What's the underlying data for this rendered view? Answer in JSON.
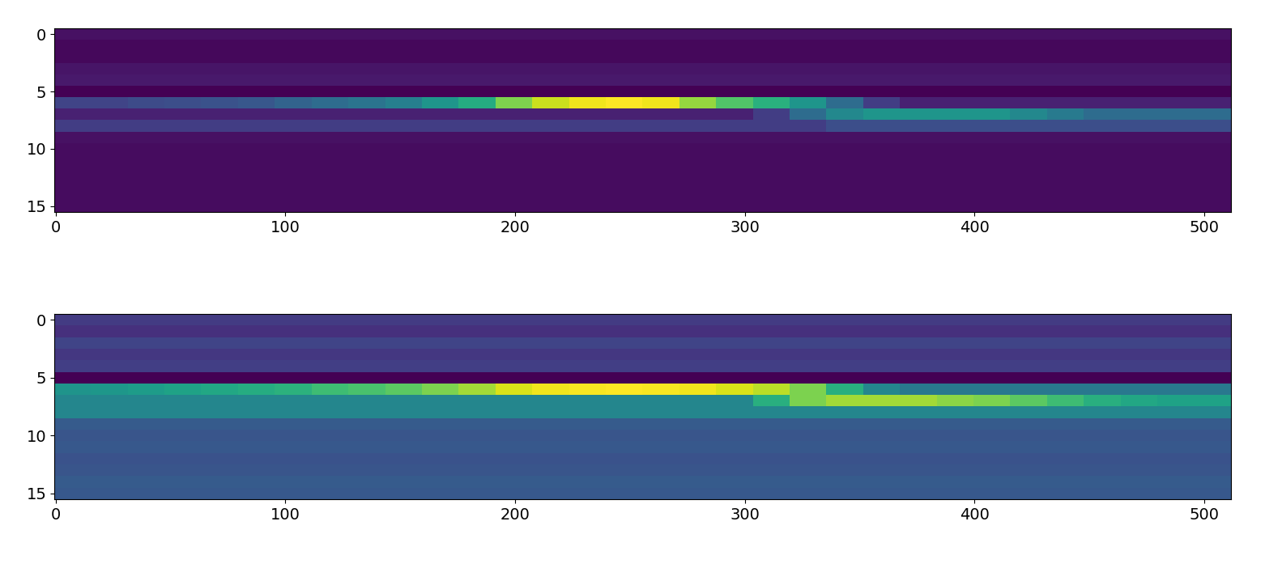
{
  "chart_data": [
    {
      "type": "heatmap",
      "color": "viridis",
      "xlim": [
        -0.5,
        511.5
      ],
      "ylim": [
        15.5,
        -0.5
      ],
      "xticks": [
        0,
        100,
        200,
        300,
        400,
        500
      ],
      "yticks": [
        0,
        5,
        10,
        15
      ],
      "cells": [
        [
          0.08,
          0.08,
          0.08,
          0.08,
          0.08,
          0.08,
          0.08,
          0.08,
          0.08,
          0.08,
          0.08,
          0.08,
          0.08,
          0.08,
          0.08,
          0.08,
          0.08,
          0.08,
          0.08,
          0.08,
          0.08,
          0.08,
          0.08,
          0.08,
          0.08,
          0.08,
          0.08,
          0.08,
          0.08,
          0.08,
          0.08,
          0.08
        ],
        [
          0.06,
          0.06,
          0.06,
          0.06,
          0.06,
          0.06,
          0.06,
          0.06,
          0.06,
          0.06,
          0.06,
          0.06,
          0.06,
          0.06,
          0.06,
          0.06,
          0.06,
          0.06,
          0.06,
          0.06,
          0.06,
          0.06,
          0.06,
          0.06,
          0.06,
          0.06,
          0.06,
          0.06,
          0.06,
          0.06,
          0.06,
          0.06
        ],
        [
          0.06,
          0.06,
          0.06,
          0.06,
          0.06,
          0.06,
          0.06,
          0.06,
          0.06,
          0.06,
          0.06,
          0.06,
          0.06,
          0.06,
          0.06,
          0.06,
          0.06,
          0.06,
          0.06,
          0.06,
          0.06,
          0.06,
          0.06,
          0.06,
          0.06,
          0.06,
          0.06,
          0.06,
          0.06,
          0.06,
          0.06,
          0.06
        ],
        [
          0.09,
          0.09,
          0.09,
          0.09,
          0.09,
          0.09,
          0.09,
          0.09,
          0.09,
          0.09,
          0.09,
          0.09,
          0.09,
          0.09,
          0.09,
          0.09,
          0.09,
          0.09,
          0.09,
          0.09,
          0.09,
          0.09,
          0.09,
          0.09,
          0.09,
          0.09,
          0.09,
          0.09,
          0.09,
          0.09,
          0.09,
          0.09
        ],
        [
          0.1,
          0.1,
          0.1,
          0.1,
          0.1,
          0.1,
          0.1,
          0.1,
          0.1,
          0.1,
          0.1,
          0.1,
          0.1,
          0.1,
          0.1,
          0.1,
          0.1,
          0.1,
          0.1,
          0.1,
          0.1,
          0.1,
          0.1,
          0.1,
          0.1,
          0.1,
          0.1,
          0.1,
          0.1,
          0.1,
          0.1,
          0.1
        ],
        [
          0.04,
          0.04,
          0.04,
          0.04,
          0.04,
          0.04,
          0.04,
          0.04,
          0.04,
          0.04,
          0.04,
          0.04,
          0.04,
          0.04,
          0.04,
          0.04,
          0.04,
          0.04,
          0.04,
          0.04,
          0.04,
          0.04,
          0.04,
          0.04,
          0.04,
          0.04,
          0.04,
          0.04,
          0.04,
          0.04,
          0.04,
          0.04
        ],
        [
          0.22,
          0.22,
          0.24,
          0.25,
          0.26,
          0.28,
          0.32,
          0.35,
          0.38,
          0.42,
          0.5,
          0.58,
          0.75,
          0.85,
          0.9,
          0.92,
          0.9,
          0.78,
          0.68,
          0.6,
          0.5,
          0.35,
          0.2,
          0.12,
          0.12,
          0.12,
          0.12,
          0.12,
          0.12,
          0.12,
          0.12,
          0.12
        ],
        [
          0.12,
          0.12,
          0.12,
          0.12,
          0.12,
          0.12,
          0.12,
          0.12,
          0.12,
          0.12,
          0.12,
          0.12,
          0.12,
          0.12,
          0.12,
          0.12,
          0.12,
          0.12,
          0.12,
          0.2,
          0.35,
          0.45,
          0.5,
          0.5,
          0.5,
          0.5,
          0.45,
          0.4,
          0.35,
          0.35,
          0.35,
          0.35
        ],
        [
          0.2,
          0.2,
          0.2,
          0.2,
          0.2,
          0.2,
          0.2,
          0.2,
          0.2,
          0.2,
          0.2,
          0.2,
          0.2,
          0.2,
          0.2,
          0.2,
          0.2,
          0.2,
          0.2,
          0.2,
          0.2,
          0.25,
          0.25,
          0.25,
          0.25,
          0.25,
          0.25,
          0.25,
          0.25,
          0.25,
          0.25,
          0.25
        ],
        [
          0.08,
          0.08,
          0.08,
          0.08,
          0.08,
          0.08,
          0.08,
          0.08,
          0.08,
          0.08,
          0.08,
          0.08,
          0.08,
          0.08,
          0.08,
          0.08,
          0.08,
          0.08,
          0.08,
          0.08,
          0.08,
          0.08,
          0.08,
          0.08,
          0.08,
          0.08,
          0.08,
          0.08,
          0.08,
          0.08,
          0.08,
          0.08
        ],
        [
          0.07,
          0.07,
          0.07,
          0.07,
          0.07,
          0.07,
          0.07,
          0.07,
          0.07,
          0.07,
          0.07,
          0.07,
          0.07,
          0.07,
          0.07,
          0.07,
          0.07,
          0.07,
          0.07,
          0.07,
          0.07,
          0.07,
          0.07,
          0.07,
          0.07,
          0.07,
          0.07,
          0.07,
          0.07,
          0.07,
          0.07,
          0.07
        ],
        [
          0.07,
          0.07,
          0.07,
          0.07,
          0.07,
          0.07,
          0.07,
          0.07,
          0.07,
          0.07,
          0.07,
          0.07,
          0.07,
          0.07,
          0.07,
          0.07,
          0.07,
          0.07,
          0.07,
          0.07,
          0.07,
          0.07,
          0.07,
          0.07,
          0.07,
          0.07,
          0.07,
          0.07,
          0.07,
          0.07,
          0.07,
          0.07
        ],
        [
          0.07,
          0.07,
          0.07,
          0.07,
          0.07,
          0.07,
          0.07,
          0.07,
          0.07,
          0.07,
          0.07,
          0.07,
          0.07,
          0.07,
          0.07,
          0.07,
          0.07,
          0.07,
          0.07,
          0.07,
          0.07,
          0.07,
          0.07,
          0.07,
          0.07,
          0.07,
          0.07,
          0.07,
          0.07,
          0.07,
          0.07,
          0.07
        ],
        [
          0.07,
          0.07,
          0.07,
          0.07,
          0.07,
          0.07,
          0.07,
          0.07,
          0.07,
          0.07,
          0.07,
          0.07,
          0.07,
          0.07,
          0.07,
          0.07,
          0.07,
          0.07,
          0.07,
          0.07,
          0.07,
          0.07,
          0.07,
          0.07,
          0.07,
          0.07,
          0.07,
          0.07,
          0.07,
          0.07,
          0.07,
          0.07
        ],
        [
          0.07,
          0.07,
          0.07,
          0.07,
          0.07,
          0.07,
          0.07,
          0.07,
          0.07,
          0.07,
          0.07,
          0.07,
          0.07,
          0.07,
          0.07,
          0.07,
          0.07,
          0.07,
          0.07,
          0.07,
          0.07,
          0.07,
          0.07,
          0.07,
          0.07,
          0.07,
          0.07,
          0.07,
          0.07,
          0.07,
          0.07,
          0.07
        ],
        [
          0.07,
          0.07,
          0.07,
          0.07,
          0.07,
          0.07,
          0.07,
          0.07,
          0.07,
          0.07,
          0.07,
          0.07,
          0.07,
          0.07,
          0.07,
          0.07,
          0.07,
          0.07,
          0.07,
          0.07,
          0.07,
          0.07,
          0.07,
          0.07,
          0.07,
          0.07,
          0.07,
          0.07,
          0.07,
          0.07,
          0.07,
          0.07
        ]
      ]
    },
    {
      "type": "heatmap",
      "color": "viridis",
      "xlim": [
        -0.5,
        511.5
      ],
      "ylim": [
        15.5,
        -0.5
      ],
      "xticks": [
        0,
        100,
        200,
        300,
        400,
        500
      ],
      "yticks": [
        0,
        5,
        10,
        15
      ],
      "cells": [
        [
          0.25,
          0.25,
          0.25,
          0.25,
          0.25,
          0.25,
          0.25,
          0.25,
          0.25,
          0.25,
          0.25,
          0.25,
          0.25,
          0.25,
          0.25,
          0.25,
          0.25,
          0.25,
          0.25,
          0.25,
          0.25,
          0.25,
          0.25,
          0.25,
          0.25,
          0.25,
          0.25,
          0.25,
          0.25,
          0.25,
          0.25,
          0.25
        ],
        [
          0.22,
          0.22,
          0.22,
          0.22,
          0.22,
          0.22,
          0.22,
          0.22,
          0.22,
          0.22,
          0.22,
          0.22,
          0.22,
          0.22,
          0.22,
          0.22,
          0.22,
          0.22,
          0.22,
          0.22,
          0.22,
          0.22,
          0.22,
          0.22,
          0.22,
          0.22,
          0.22,
          0.22,
          0.22,
          0.22,
          0.22,
          0.22
        ],
        [
          0.28,
          0.28,
          0.28,
          0.28,
          0.28,
          0.28,
          0.28,
          0.28,
          0.28,
          0.28,
          0.28,
          0.28,
          0.28,
          0.28,
          0.28,
          0.28,
          0.28,
          0.28,
          0.28,
          0.28,
          0.28,
          0.28,
          0.28,
          0.28,
          0.28,
          0.28,
          0.28,
          0.28,
          0.28,
          0.28,
          0.28,
          0.28
        ],
        [
          0.24,
          0.24,
          0.24,
          0.24,
          0.24,
          0.24,
          0.24,
          0.24,
          0.24,
          0.24,
          0.24,
          0.24,
          0.24,
          0.24,
          0.24,
          0.24,
          0.24,
          0.24,
          0.24,
          0.24,
          0.24,
          0.24,
          0.24,
          0.24,
          0.24,
          0.24,
          0.24,
          0.24,
          0.24,
          0.24,
          0.24,
          0.24
        ],
        [
          0.26,
          0.26,
          0.26,
          0.26,
          0.26,
          0.26,
          0.26,
          0.26,
          0.26,
          0.26,
          0.26,
          0.26,
          0.26,
          0.26,
          0.26,
          0.26,
          0.26,
          0.26,
          0.26,
          0.26,
          0.26,
          0.26,
          0.26,
          0.26,
          0.26,
          0.26,
          0.26,
          0.26,
          0.26,
          0.26,
          0.26,
          0.26
        ],
        [
          0.1,
          0.1,
          0.1,
          0.1,
          0.1,
          0.1,
          0.1,
          0.1,
          0.1,
          0.1,
          0.1,
          0.1,
          0.1,
          0.1,
          0.1,
          0.1,
          0.1,
          0.1,
          0.1,
          0.1,
          0.1,
          0.1,
          0.1,
          0.1,
          0.1,
          0.1,
          0.1,
          0.1,
          0.1,
          0.1,
          0.1,
          0.1
        ],
        [
          0.55,
          0.56,
          0.58,
          0.6,
          0.62,
          0.64,
          0.66,
          0.7,
          0.72,
          0.75,
          0.8,
          0.85,
          0.92,
          0.95,
          0.96,
          0.97,
          0.96,
          0.95,
          0.92,
          0.88,
          0.8,
          0.65,
          0.5,
          0.45,
          0.45,
          0.45,
          0.45,
          0.45,
          0.45,
          0.45,
          0.45,
          0.45
        ],
        [
          0.5,
          0.5,
          0.5,
          0.5,
          0.5,
          0.5,
          0.5,
          0.5,
          0.5,
          0.5,
          0.5,
          0.5,
          0.5,
          0.5,
          0.5,
          0.5,
          0.5,
          0.5,
          0.5,
          0.65,
          0.8,
          0.85,
          0.85,
          0.85,
          0.82,
          0.8,
          0.75,
          0.7,
          0.65,
          0.62,
          0.6,
          0.6
        ],
        [
          0.5,
          0.5,
          0.5,
          0.5,
          0.5,
          0.5,
          0.5,
          0.5,
          0.5,
          0.5,
          0.5,
          0.5,
          0.5,
          0.5,
          0.5,
          0.5,
          0.5,
          0.5,
          0.5,
          0.5,
          0.5,
          0.5,
          0.5,
          0.5,
          0.5,
          0.5,
          0.5,
          0.5,
          0.5,
          0.5,
          0.5,
          0.5
        ],
        [
          0.35,
          0.35,
          0.35,
          0.35,
          0.35,
          0.35,
          0.35,
          0.35,
          0.35,
          0.35,
          0.35,
          0.35,
          0.35,
          0.35,
          0.35,
          0.35,
          0.35,
          0.35,
          0.35,
          0.35,
          0.35,
          0.35,
          0.35,
          0.35,
          0.35,
          0.35,
          0.35,
          0.35,
          0.35,
          0.35,
          0.35,
          0.35
        ],
        [
          0.33,
          0.33,
          0.33,
          0.33,
          0.33,
          0.33,
          0.33,
          0.33,
          0.33,
          0.33,
          0.33,
          0.33,
          0.33,
          0.33,
          0.33,
          0.33,
          0.33,
          0.33,
          0.33,
          0.33,
          0.33,
          0.33,
          0.33,
          0.33,
          0.33,
          0.33,
          0.33,
          0.33,
          0.33,
          0.33,
          0.33,
          0.33
        ],
        [
          0.34,
          0.34,
          0.34,
          0.34,
          0.34,
          0.34,
          0.34,
          0.34,
          0.34,
          0.34,
          0.34,
          0.34,
          0.34,
          0.34,
          0.34,
          0.34,
          0.34,
          0.34,
          0.34,
          0.34,
          0.34,
          0.34,
          0.34,
          0.34,
          0.34,
          0.34,
          0.34,
          0.34,
          0.34,
          0.34,
          0.34,
          0.34
        ],
        [
          0.32,
          0.32,
          0.32,
          0.32,
          0.32,
          0.32,
          0.32,
          0.32,
          0.32,
          0.32,
          0.32,
          0.32,
          0.32,
          0.32,
          0.32,
          0.32,
          0.32,
          0.32,
          0.32,
          0.32,
          0.32,
          0.32,
          0.32,
          0.32,
          0.32,
          0.32,
          0.32,
          0.32,
          0.32,
          0.32,
          0.32,
          0.32
        ],
        [
          0.33,
          0.33,
          0.33,
          0.33,
          0.33,
          0.33,
          0.33,
          0.33,
          0.33,
          0.33,
          0.33,
          0.33,
          0.33,
          0.33,
          0.33,
          0.33,
          0.33,
          0.33,
          0.33,
          0.33,
          0.33,
          0.33,
          0.33,
          0.33,
          0.33,
          0.33,
          0.33,
          0.33,
          0.33,
          0.33,
          0.33,
          0.33
        ],
        [
          0.35,
          0.35,
          0.35,
          0.35,
          0.35,
          0.35,
          0.35,
          0.35,
          0.35,
          0.35,
          0.35,
          0.35,
          0.35,
          0.35,
          0.35,
          0.35,
          0.35,
          0.35,
          0.35,
          0.35,
          0.35,
          0.35,
          0.35,
          0.35,
          0.35,
          0.35,
          0.35,
          0.35,
          0.35,
          0.35,
          0.35,
          0.35
        ],
        [
          0.34,
          0.34,
          0.34,
          0.34,
          0.34,
          0.34,
          0.34,
          0.34,
          0.34,
          0.34,
          0.34,
          0.34,
          0.34,
          0.34,
          0.34,
          0.34,
          0.34,
          0.34,
          0.34,
          0.34,
          0.34,
          0.34,
          0.34,
          0.34,
          0.34,
          0.34,
          0.34,
          0.34,
          0.34,
          0.34,
          0.34,
          0.34
        ]
      ]
    }
  ]
}
